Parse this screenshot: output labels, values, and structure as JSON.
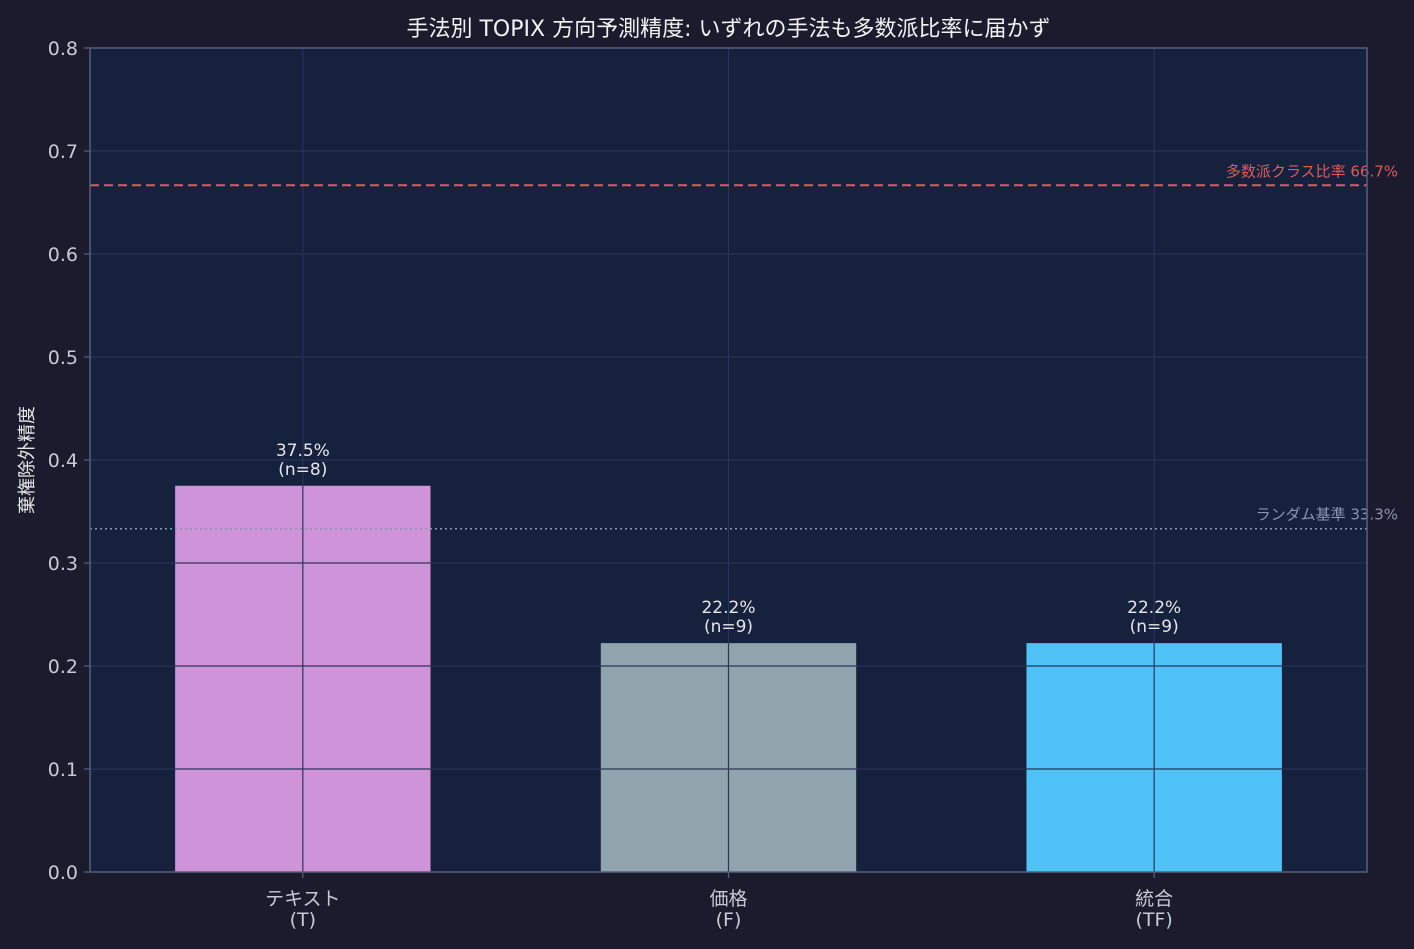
{
  "chart_data": {
    "type": "bar",
    "title": "手法別 TOPIX 方向予測精度: いずれの手法も多数派比率に届かず",
    "xlabel": "",
    "ylabel": "棄権除外精度",
    "ylim": [
      0,
      0.8
    ],
    "yticks": [
      "0.0",
      "0.1",
      "0.2",
      "0.3",
      "0.4",
      "0.5",
      "0.6",
      "0.7",
      "0.8"
    ],
    "grid": true,
    "categories": [
      [
        "テキスト",
        "(T)"
      ],
      [
        "価格",
        "(F)"
      ],
      [
        "統合",
        "(TF)"
      ]
    ],
    "values": [
      0.375,
      0.2222,
      0.2222
    ],
    "value_labels": [
      "37.5%",
      "22.2%",
      "22.2%"
    ],
    "count_labels": [
      "(n=8)",
      "(n=9)",
      "(n=9)"
    ],
    "bar_colors": [
      "#ce93d8",
      "#90a4ae",
      "#4fc3f7"
    ],
    "reference_lines": [
      {
        "value": 0.6667,
        "label": "多数派クラス比率 66.7%",
        "style": "dashed",
        "color": "#e05a5a"
      },
      {
        "value": 0.3333,
        "label": "ランダム基準 33.3%",
        "style": "dotted",
        "color": "#8a96b0"
      }
    ]
  },
  "colors": {
    "page_background": "#1c1b2e",
    "plot_background": "#16213e",
    "grid": "#2a3658",
    "axis": "#56607e",
    "text": "#e6e6e6",
    "tick_text": "#c6cad6"
  }
}
